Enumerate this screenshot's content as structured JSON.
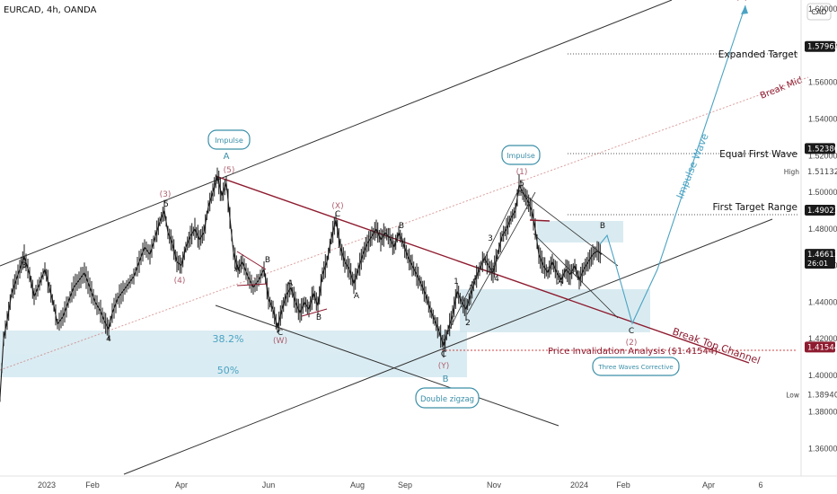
{
  "header": {
    "symbol": "EURCAD, 4h, OANDA",
    "currency": "CAD"
  },
  "chart_data": {
    "type": "candlestick",
    "symbol": "EURCAD",
    "interval": "4h",
    "source": "OANDA",
    "ylim": [
      1.345,
      1.605
    ],
    "price_axis_ticks": [
      "1.60000",
      "1.58000",
      "1.56000",
      "1.54000",
      "1.52000",
      "1.50000",
      "1.48000",
      "1.46000",
      "1.44000",
      "1.42000",
      "1.40000",
      "1.38000",
      "1.36000"
    ],
    "time_axis_labels": [
      "2023",
      "Feb",
      "Apr",
      "Jun",
      "Aug",
      "Sep",
      "Nov",
      "2024",
      "Feb",
      "Apr",
      "6"
    ],
    "price_tags": [
      {
        "value": "1.57962",
        "style": "dark"
      },
      {
        "value": "1.52386",
        "style": "dark"
      },
      {
        "value": "1.51132",
        "label": "High",
        "style": "plain"
      },
      {
        "value": "1.49023",
        "style": "dark"
      },
      {
        "value": "1.46613",
        "sub": "26:01",
        "style": "dark"
      },
      {
        "value": "1.41544",
        "style": "red"
      },
      {
        "value": "1.38940",
        "label": "Low",
        "style": "plain"
      }
    ],
    "price_path": [
      [
        0,
        1.388
      ],
      [
        4,
        1.42
      ],
      [
        8,
        1.43
      ],
      [
        13,
        1.445
      ],
      [
        18,
        1.452
      ],
      [
        22,
        1.458
      ],
      [
        27,
        1.465
      ],
      [
        33,
        1.455
      ],
      [
        38,
        1.443
      ],
      [
        44,
        1.45
      ],
      [
        50,
        1.458
      ],
      [
        55,
        1.448
      ],
      [
        60,
        1.438
      ],
      [
        64,
        1.428
      ],
      [
        70,
        1.432
      ],
      [
        76,
        1.44
      ],
      [
        82,
        1.448
      ],
      [
        88,
        1.452
      ],
      [
        94,
        1.456
      ],
      [
        100,
        1.448
      ],
      [
        106,
        1.44
      ],
      [
        112,
        1.435
      ],
      [
        116,
        1.43
      ],
      [
        121,
        1.425
      ],
      [
        125,
        1.434
      ],
      [
        131,
        1.442
      ],
      [
        137,
        1.446
      ],
      [
        143,
        1.45
      ],
      [
        149,
        1.454
      ],
      [
        155,
        1.462
      ],
      [
        161,
        1.47
      ],
      [
        167,
        1.466
      ],
      [
        173,
        1.476
      ],
      [
        178,
        1.484
      ],
      [
        183,
        1.49
      ],
      [
        187,
        1.478
      ],
      [
        192,
        1.472
      ],
      [
        197,
        1.462
      ],
      [
        202,
        1.46
      ],
      [
        207,
        1.47
      ],
      [
        212,
        1.476
      ],
      [
        217,
        1.48
      ],
      [
        222,
        1.474
      ],
      [
        227,
        1.478
      ],
      [
        232,
        1.492
      ],
      [
        237,
        1.5
      ],
      [
        242,
        1.509
      ],
      [
        247,
        1.498
      ],
      [
        252,
        1.505
      ],
      [
        256,
        1.486
      ],
      [
        260,
        1.467
      ],
      [
        265,
        1.458
      ],
      [
        270,
        1.462
      ],
      [
        276,
        1.454
      ],
      [
        282,
        1.448
      ],
      [
        288,
        1.452
      ],
      [
        294,
        1.458
      ],
      [
        299,
        1.442
      ],
      [
        304,
        1.436
      ],
      [
        309,
        1.426
      ],
      [
        314,
        1.436
      ],
      [
        319,
        1.444
      ],
      [
        324,
        1.448
      ],
      [
        329,
        1.44
      ],
      [
        334,
        1.434
      ],
      [
        339,
        1.44
      ],
      [
        344,
        1.436
      ],
      [
        349,
        1.445
      ],
      [
        354,
        1.438
      ],
      [
        359,
        1.455
      ],
      [
        364,
        1.462
      ],
      [
        369,
        1.475
      ],
      [
        374,
        1.485
      ],
      [
        379,
        1.47
      ],
      [
        384,
        1.462
      ],
      [
        389,
        1.458
      ],
      [
        394,
        1.45
      ],
      [
        399,
        1.458
      ],
      [
        404,
        1.466
      ],
      [
        409,
        1.472
      ],
      [
        414,
        1.476
      ],
      [
        419,
        1.48
      ],
      [
        424,
        1.474
      ],
      [
        429,
        1.478
      ],
      [
        434,
        1.475
      ],
      [
        439,
        1.47
      ],
      [
        444,
        1.478
      ],
      [
        449,
        1.472
      ],
      [
        454,
        1.465
      ],
      [
        459,
        1.46
      ],
      [
        464,
        1.455
      ],
      [
        469,
        1.45
      ],
      [
        474,
        1.444
      ],
      [
        479,
        1.436
      ],
      [
        484,
        1.43
      ],
      [
        489,
        1.424
      ],
      [
        494,
        1.416
      ],
      [
        499,
        1.425
      ],
      [
        504,
        1.433
      ],
      [
        509,
        1.446
      ],
      [
        514,
        1.44
      ],
      [
        519,
        1.436
      ],
      [
        524,
        1.444
      ],
      [
        529,
        1.452
      ],
      [
        534,
        1.458
      ],
      [
        539,
        1.464
      ],
      [
        544,
        1.46
      ],
      [
        549,
        1.456
      ],
      [
        554,
        1.466
      ],
      [
        559,
        1.476
      ],
      [
        564,
        1.48
      ],
      [
        569,
        1.486
      ],
      [
        574,
        1.49
      ],
      [
        578,
        1.504
      ],
      [
        582,
        1.5
      ],
      [
        587,
        1.496
      ],
      [
        592,
        1.49
      ],
      [
        596,
        1.48
      ],
      [
        600,
        1.466
      ],
      [
        605,
        1.46
      ],
      [
        610,
        1.456
      ],
      [
        615,
        1.462
      ],
      [
        620,
        1.456
      ],
      [
        625,
        1.452
      ],
      [
        630,
        1.458
      ],
      [
        635,
        1.455
      ],
      [
        640,
        1.46
      ],
      [
        645,
        1.452
      ],
      [
        650,
        1.458
      ],
      [
        655,
        1.462
      ],
      [
        660,
        1.466
      ],
      [
        665,
        1.468
      ],
      [
        670,
        1.466
      ]
    ],
    "annotations": {
      "target_labels": [
        {
          "text": "Expanded Target",
          "value": 1.57962
        },
        {
          "text": "Equal First Wave",
          "value": 1.52386
        },
        {
          "text": "First Target Range",
          "value": 1.49023
        }
      ],
      "impulse_boxes": [
        "Impulse",
        "Impulse"
      ],
      "double_zigzag": "Double zigzag",
      "three_waves": "Three Waves Corrective",
      "fib_382": "38.2%",
      "fib_50": "50%",
      "price_invalidation": "Price Invalidation Analysis ($1.41544)",
      "break_top_channel": "Break Top Channel",
      "break_mid": "Break Mid",
      "impulse_wave": "Impulse Wave",
      "wave_letter_a_top": "A",
      "wave_letter_b_bottom": "B",
      "wave_labels": [
        {
          "text": "3",
          "c": "#111"
        },
        {
          "text": "4",
          "c": "#111"
        },
        {
          "text": "5",
          "c": "#111"
        },
        {
          "text": "(3)",
          "c": "#b06070"
        },
        {
          "text": "(4)",
          "c": "#b06070"
        },
        {
          "text": "(5)",
          "c": "#b06070"
        },
        {
          "text": "A",
          "c": "#111"
        },
        {
          "text": "B",
          "c": "#111"
        },
        {
          "text": "C",
          "c": "#111"
        },
        {
          "text": "(W)",
          "c": "#b06070"
        },
        {
          "text": "A",
          "c": "#111"
        },
        {
          "text": "B",
          "c": "#111"
        },
        {
          "text": "C",
          "c": "#111"
        },
        {
          "text": "(X)",
          "c": "#b06070"
        },
        {
          "text": "A",
          "c": "#111"
        },
        {
          "text": "B",
          "c": "#111"
        },
        {
          "text": "C",
          "c": "#111"
        },
        {
          "text": "(Y)",
          "c": "#b06070"
        },
        {
          "text": "1",
          "c": "#111"
        },
        {
          "text": "2",
          "c": "#111"
        },
        {
          "text": "3",
          "c": "#111"
        },
        {
          "text": "4",
          "c": "#111"
        },
        {
          "text": "5",
          "c": "#111"
        },
        {
          "text": "(1)",
          "c": "#b06070"
        },
        {
          "text": "A",
          "c": "#111"
        },
        {
          "text": "B",
          "c": "#111"
        },
        {
          "text": "C",
          "c": "#111"
        },
        {
          "text": "(2)",
          "c": "#b06070"
        },
        {
          "text": "(3)",
          "c": "#b06070"
        }
      ]
    },
    "colors": {
      "candle_up": "#1a1a1a",
      "candle_down": "#1a1a1a",
      "channel": "#333333",
      "resistance": "#8e1b2f",
      "projection": "#4ba3c3",
      "zone": "#cfe6ee",
      "label_teal": "#3a8fa8"
    }
  }
}
